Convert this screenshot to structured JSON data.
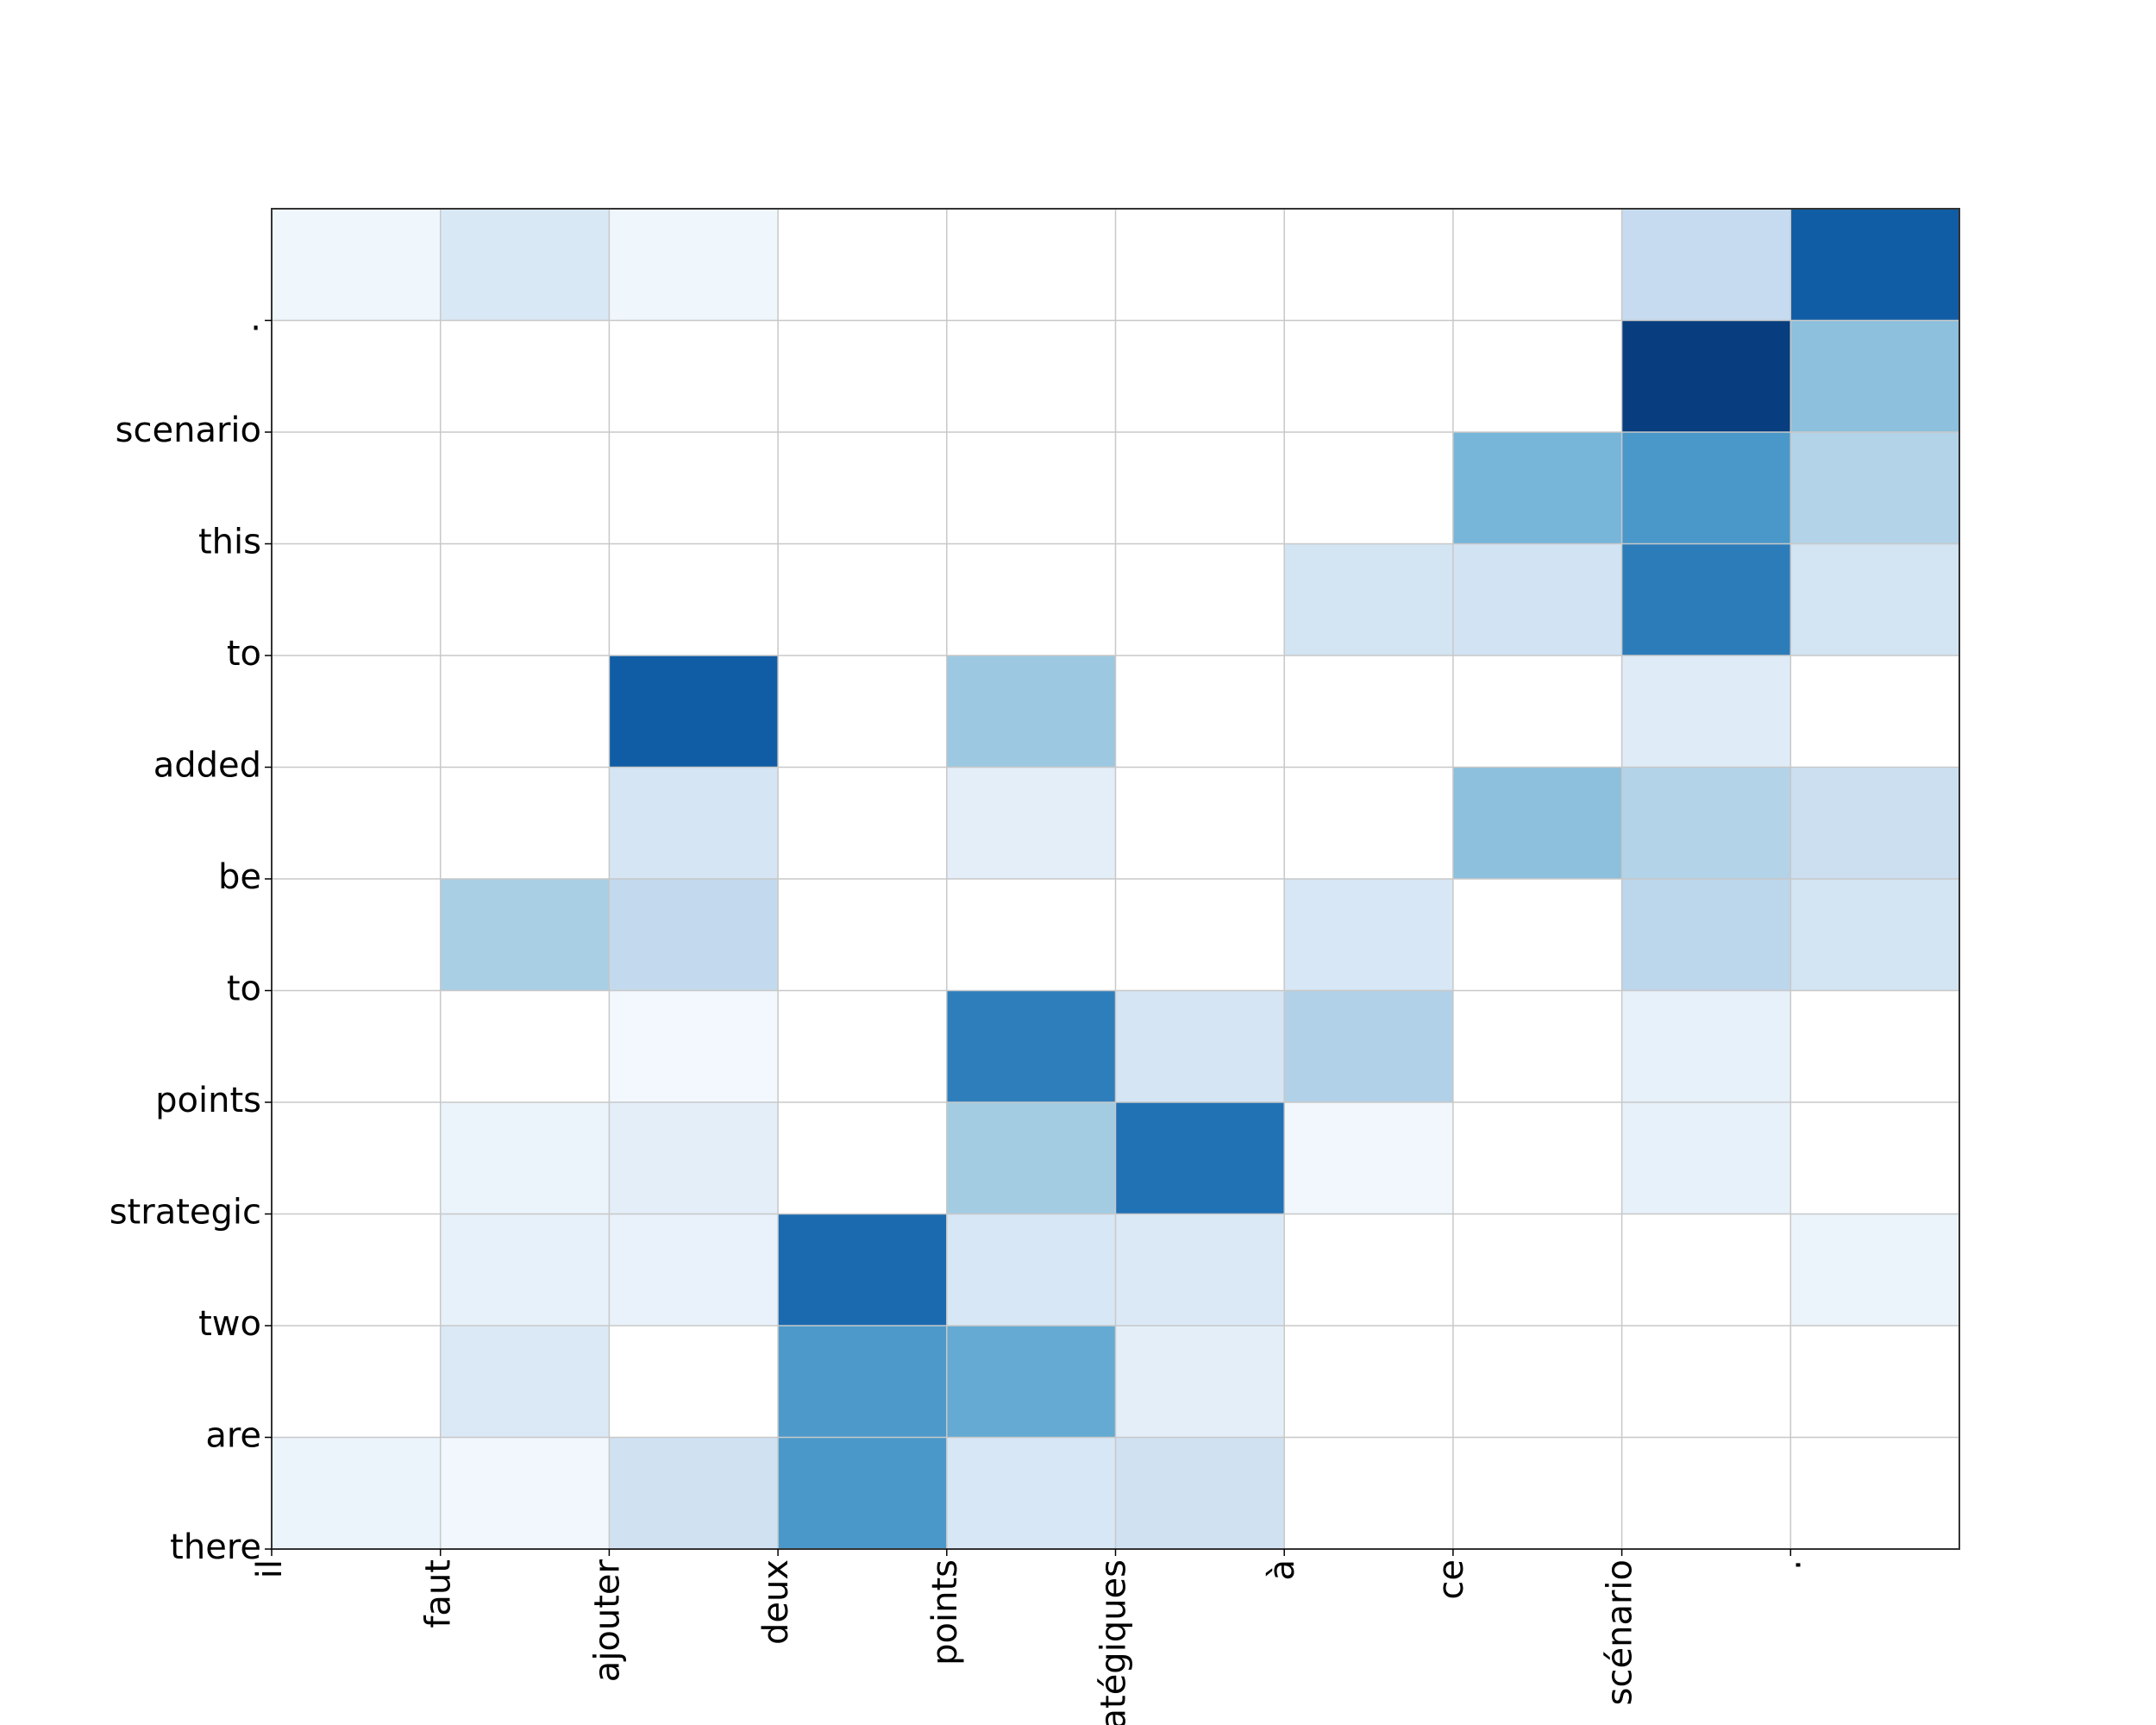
{
  "chart_data": {
    "type": "heatmap",
    "x_labels": [
      "il",
      "faut",
      "ajouter",
      "deux",
      "points",
      "stratégiques",
      "à",
      "ce",
      "scénario",
      "."
    ],
    "y_labels": [
      "there",
      "are",
      "two",
      "strategic",
      "points",
      "to",
      "be",
      "added",
      "to",
      "this",
      "scenario",
      "."
    ],
    "values": [
      [
        0.06,
        0.03,
        0.2,
        0.6,
        0.16,
        0.2,
        0.0,
        0.0,
        0.0,
        0.0
      ],
      [
        0.0,
        0.14,
        0.0,
        0.59,
        0.52,
        0.1,
        0.0,
        0.0,
        0.0,
        0.0
      ],
      [
        0.0,
        0.08,
        0.07,
        0.78,
        0.16,
        0.14,
        0.0,
        0.0,
        0.0,
        0.06
      ],
      [
        0.0,
        0.06,
        0.1,
        0.0,
        0.36,
        0.75,
        0.03,
        0.0,
        0.08,
        0.0
      ],
      [
        0.0,
        0.0,
        0.02,
        0.0,
        0.7,
        0.17,
        0.32,
        0.0,
        0.08,
        0.0
      ],
      [
        0.0,
        0.34,
        0.26,
        0.0,
        0.0,
        0.0,
        0.16,
        0.0,
        0.28,
        0.18
      ],
      [
        0.0,
        0.0,
        0.17,
        0.0,
        0.1,
        0.0,
        0.0,
        0.42,
        0.31,
        0.22
      ],
      [
        0.0,
        0.0,
        0.83,
        0.0,
        0.38,
        0.0,
        0.0,
        0.0,
        0.12,
        0.0
      ],
      [
        0.0,
        0.0,
        0.0,
        0.0,
        0.0,
        0.0,
        0.18,
        0.19,
        0.71,
        0.18
      ],
      [
        0.0,
        0.0,
        0.0,
        0.0,
        0.0,
        0.0,
        0.0,
        0.47,
        0.6,
        0.31
      ],
      [
        0.0,
        0.0,
        0.0,
        0.0,
        0.0,
        0.0,
        0.0,
        0.0,
        0.95,
        0.42
      ],
      [
        0.04,
        0.15,
        0.04,
        0.0,
        0.0,
        0.0,
        0.0,
        0.0,
        0.25,
        0.83
      ]
    ],
    "colormap": "Blues",
    "grid": true
  }
}
